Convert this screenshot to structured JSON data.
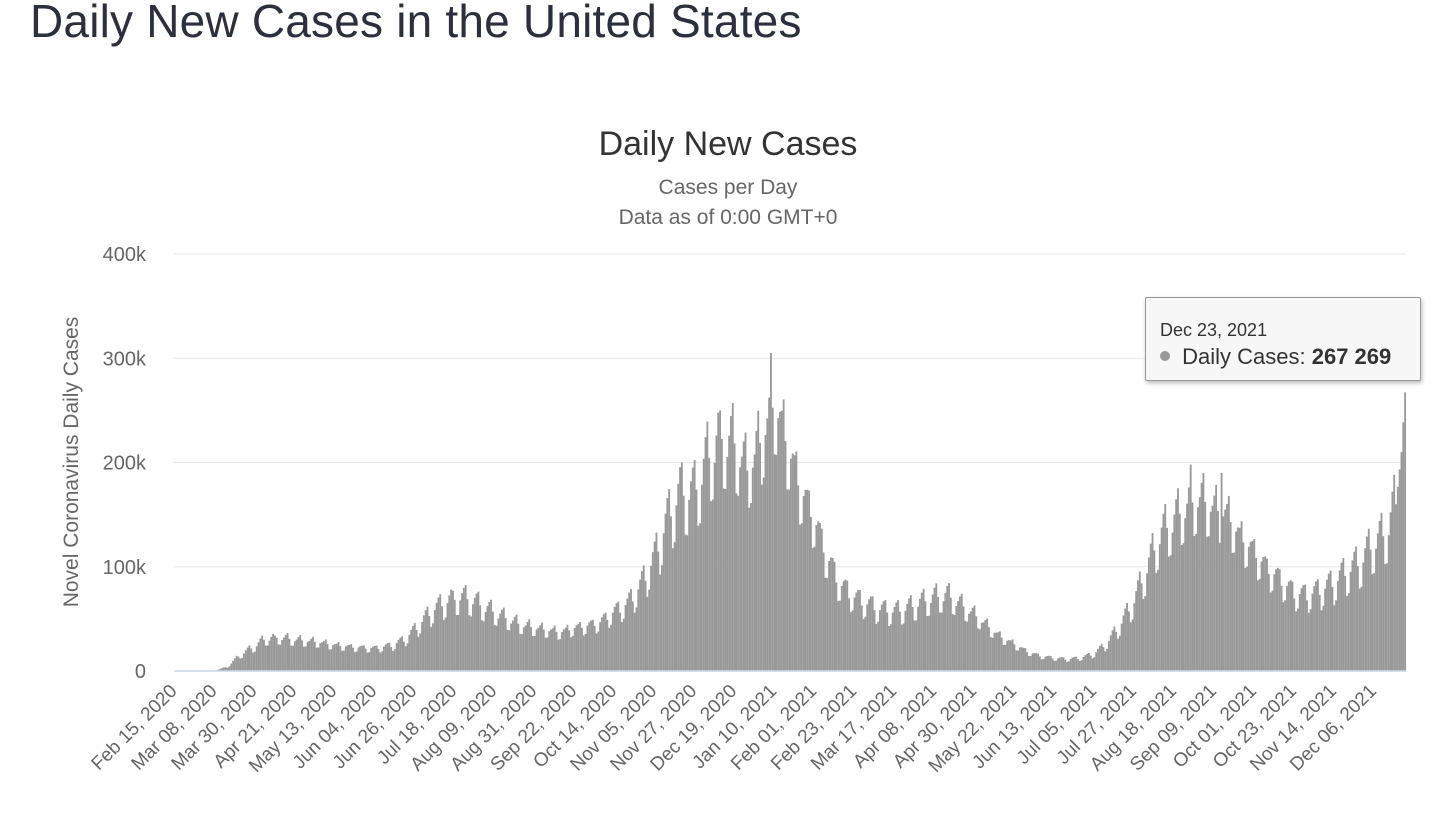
{
  "page": {
    "title": "Daily New Cases in the United States"
  },
  "chart_data": {
    "type": "bar",
    "title": "Daily New Cases",
    "subtitle": [
      "Cases per Day",
      "Data as of 0:00 GMT+0"
    ],
    "ylabel": "Novel Coronavirus Daily Cases",
    "xlabel": "",
    "ylim": [
      0,
      400000
    ],
    "yticks": [
      {
        "value": 0,
        "label": "0"
      },
      {
        "value": 100000,
        "label": "100k"
      },
      {
        "value": 200000,
        "label": "200k"
      },
      {
        "value": 300000,
        "label": "300k"
      },
      {
        "value": 400000,
        "label": "400k"
      }
    ],
    "x_start_date": "Feb 15, 2020",
    "x_end_date": "Dec 23, 2021",
    "xticks": [
      "Feb 15, 2020",
      "Mar 08, 2020",
      "Mar 30, 2020",
      "Apr 21, 2020",
      "May 13, 2020",
      "Jun 04, 2020",
      "Jun 26, 2020",
      "Jul 18, 2020",
      "Aug 09, 2020",
      "Aug 31, 2020",
      "Sep 22, 2020",
      "Oct 14, 2020",
      "Nov 05, 2020",
      "Nov 27, 2020",
      "Dec 19, 2020",
      "Jan 10, 2021",
      "Feb 01, 2021",
      "Feb 23, 2021",
      "Mar 17, 2021",
      "Apr 08, 2021",
      "Apr 30, 2021",
      "May 22, 2021",
      "Jun 13, 2021",
      "Jul 05, 2021",
      "Jul 27, 2021",
      "Aug 18, 2021",
      "Sep 09, 2021",
      "Oct 01, 2021",
      "Oct 23, 2021",
      "Nov 14, 2021",
      "Dec 06, 2021"
    ],
    "grid": true,
    "legend": "none",
    "series": [
      {
        "name": "Daily Cases",
        "color": "#999999",
        "weekly_samples": [
          {
            "date": "Feb 15, 2020",
            "value": 0
          },
          {
            "date": "Mar 01, 2020",
            "value": 0
          },
          {
            "date": "Mar 08, 2020",
            "value": 300
          },
          {
            "date": "Mar 15, 2020",
            "value": 4000
          },
          {
            "date": "Mar 22, 2020",
            "value": 15000
          },
          {
            "date": "Mar 29, 2020",
            "value": 22000
          },
          {
            "date": "Apr 05, 2020",
            "value": 30000
          },
          {
            "date": "Apr 12, 2020",
            "value": 31000
          },
          {
            "date": "Apr 21, 2020",
            "value": 29000
          },
          {
            "date": "May 03, 2020",
            "value": 27000
          },
          {
            "date": "May 13, 2020",
            "value": 24000
          },
          {
            "date": "May 24, 2020",
            "value": 22000
          },
          {
            "date": "Jun 04, 2020",
            "value": 21000
          },
          {
            "date": "Jun 14, 2020",
            "value": 24000
          },
          {
            "date": "Jun 21, 2020",
            "value": 30000
          },
          {
            "date": "Jun 28, 2020",
            "value": 42000
          },
          {
            "date": "Jul 05, 2020",
            "value": 55000
          },
          {
            "date": "Jul 12, 2020",
            "value": 63000
          },
          {
            "date": "Jul 19, 2020",
            "value": 68000
          },
          {
            "date": "Jul 26, 2020",
            "value": 67000
          },
          {
            "date": "Aug 02, 2020",
            "value": 60000
          },
          {
            "date": "Aug 09, 2020",
            "value": 54000
          },
          {
            "date": "Aug 16, 2020",
            "value": 48000
          },
          {
            "date": "Aug 23, 2020",
            "value": 43000
          },
          {
            "date": "Aug 31, 2020",
            "value": 40000
          },
          {
            "date": "Sep 07, 2020",
            "value": 38000
          },
          {
            "date": "Sep 14, 2020",
            "value": 36000
          },
          {
            "date": "Sep 22, 2020",
            "value": 40000
          },
          {
            "date": "Sep 29, 2020",
            "value": 42000
          },
          {
            "date": "Oct 06, 2020",
            "value": 45000
          },
          {
            "date": "Oct 14, 2020",
            "value": 55000
          },
          {
            "date": "Oct 21, 2020",
            "value": 62000
          },
          {
            "date": "Oct 28, 2020",
            "value": 78000
          },
          {
            "date": "Nov 05, 2020",
            "value": 105000
          },
          {
            "date": "Nov 12, 2020",
            "value": 140000
          },
          {
            "date": "Nov 19, 2020",
            "value": 165000
          },
          {
            "date": "Nov 27, 2020",
            "value": 165000
          },
          {
            "date": "Dec 04, 2020",
            "value": 195000
          },
          {
            "date": "Dec 11, 2020",
            "value": 215000
          },
          {
            "date": "Dec 19, 2020",
            "value": 210000
          },
          {
            "date": "Dec 26, 2020",
            "value": 185000
          },
          {
            "date": "Jan 03, 2021",
            "value": 215000
          },
          {
            "date": "Jan 10, 2021",
            "value": 250000
          },
          {
            "date": "Jan 17, 2021",
            "value": 210000
          },
          {
            "date": "Jan 24, 2021",
            "value": 170000
          },
          {
            "date": "Feb 01, 2021",
            "value": 140000
          },
          {
            "date": "Feb 08, 2021",
            "value": 105000
          },
          {
            "date": "Feb 15, 2021",
            "value": 80000
          },
          {
            "date": "Feb 23, 2021",
            "value": 68000
          },
          {
            "date": "Mar 02, 2021",
            "value": 62000
          },
          {
            "date": "Mar 09, 2021",
            "value": 57000
          },
          {
            "date": "Mar 17, 2021",
            "value": 55000
          },
          {
            "date": "Mar 24, 2021",
            "value": 58000
          },
          {
            "date": "Mar 31, 2021",
            "value": 63000
          },
          {
            "date": "Apr 08, 2021",
            "value": 68000
          },
          {
            "date": "Apr 15, 2021",
            "value": 70000
          },
          {
            "date": "Apr 22, 2021",
            "value": 62000
          },
          {
            "date": "Apr 30, 2021",
            "value": 52000
          },
          {
            "date": "May 07, 2021",
            "value": 42000
          },
          {
            "date": "May 14, 2021",
            "value": 32000
          },
          {
            "date": "May 22, 2021",
            "value": 25000
          },
          {
            "date": "May 29, 2021",
            "value": 18000
          },
          {
            "date": "Jun 05, 2021",
            "value": 14000
          },
          {
            "date": "Jun 13, 2021",
            "value": 12000
          },
          {
            "date": "Jun 20, 2021",
            "value": 11000
          },
          {
            "date": "Jun 27, 2021",
            "value": 12000
          },
          {
            "date": "Jul 05, 2021",
            "value": 16000
          },
          {
            "date": "Jul 12, 2021",
            "value": 26000
          },
          {
            "date": "Jul 19, 2021",
            "value": 42000
          },
          {
            "date": "Jul 27, 2021",
            "value": 65000
          },
          {
            "date": "Aug 03, 2021",
            "value": 95000
          },
          {
            "date": "Aug 10, 2021",
            "value": 125000
          },
          {
            "date": "Aug 18, 2021",
            "value": 140000
          },
          {
            "date": "Aug 25, 2021",
            "value": 152000
          },
          {
            "date": "Sep 01, 2021",
            "value": 160000
          },
          {
            "date": "Sep 09, 2021",
            "value": 150000
          },
          {
            "date": "Sep 16, 2021",
            "value": 145000
          },
          {
            "date": "Sep 23, 2021",
            "value": 125000
          },
          {
            "date": "Oct 01, 2021",
            "value": 110000
          },
          {
            "date": "Oct 08, 2021",
            "value": 95000
          },
          {
            "date": "Oct 15, 2021",
            "value": 85000
          },
          {
            "date": "Oct 23, 2021",
            "value": 72000
          },
          {
            "date": "Oct 30, 2021",
            "value": 70000
          },
          {
            "date": "Nov 07, 2021",
            "value": 75000
          },
          {
            "date": "Nov 14, 2021",
            "value": 82000
          },
          {
            "date": "Nov 21, 2021",
            "value": 92000
          },
          {
            "date": "Nov 28, 2021",
            "value": 100000
          },
          {
            "date": "Dec 06, 2021",
            "value": 118000
          },
          {
            "date": "Dec 13, 2021",
            "value": 128000
          },
          {
            "date": "Dec 18, 2021",
            "value": 160000
          },
          {
            "date": "Dec 21, 2021",
            "value": 210000
          },
          {
            "date": "Dec 23, 2021",
            "value": 267269
          }
        ],
        "peaks": [
          {
            "date": "Apr 10, 2020",
            "value": 34000
          },
          {
            "date": "Jul 17, 2020",
            "value": 77000
          },
          {
            "date": "Nov 20, 2020",
            "value": 200000
          },
          {
            "date": "Dec 11, 2020",
            "value": 250000
          },
          {
            "date": "Jan 08, 2021",
            "value": 305000
          },
          {
            "date": "Apr 09, 2021",
            "value": 84000
          },
          {
            "date": "Aug 27, 2021",
            "value": 198000
          },
          {
            "date": "Sep 13, 2021",
            "value": 190000
          },
          {
            "date": "Dec 23, 2021",
            "value": 267269
          }
        ]
      }
    ],
    "tooltip": {
      "date": "Dec 23, 2021",
      "series_label": "Daily Cases:",
      "value": "267 269"
    }
  }
}
